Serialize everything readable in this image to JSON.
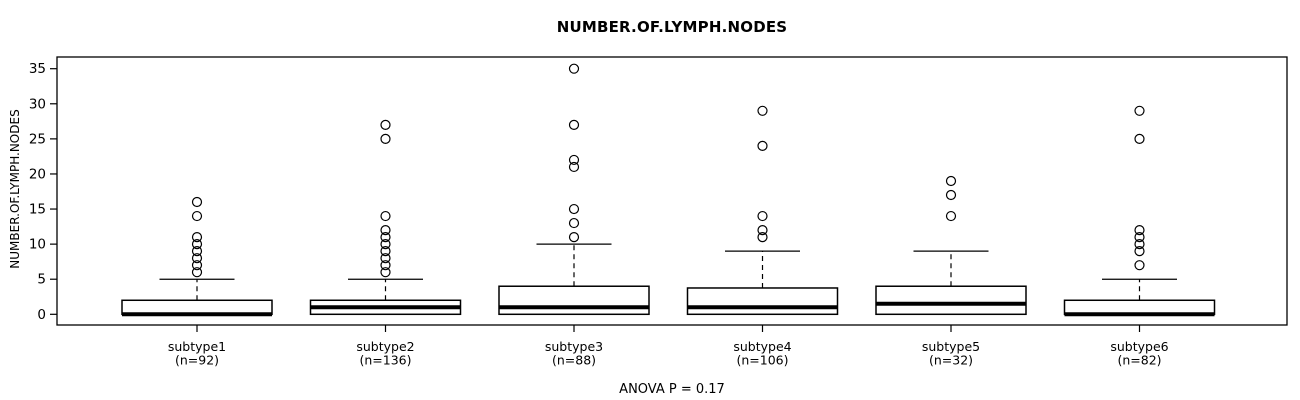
{
  "header": {
    "title": "NUMBER.OF.LYMPH.NODES"
  },
  "footer": {
    "annotation": "ANOVA P = 0.17"
  },
  "chart_data": {
    "type": "boxplot",
    "title": "NUMBER.OF.LYMPH.NODES",
    "xlabel": "",
    "ylabel": "NUMBER.OF.LYMPH.NODES",
    "ylim": [
      0,
      35
    ],
    "yticks": [
      0,
      5,
      10,
      15,
      20,
      25,
      30,
      35
    ],
    "annotation": "ANOVA P = 0.17",
    "legend": "none",
    "grid": false,
    "colors": {
      "stroke": "#000000",
      "box_fill": "#ffffff",
      "background": "#ffffff"
    },
    "groups": [
      {
        "label": "subtype1",
        "sublabel": "(n=92)",
        "n": 92,
        "whisker_low": 0,
        "q1": 0,
        "median": 0,
        "q3": 2,
        "whisker_high": 5,
        "outliers": [
          6,
          7,
          8,
          9,
          10,
          11,
          14,
          16
        ]
      },
      {
        "label": "subtype2",
        "sublabel": "(n=136)",
        "n": 136,
        "whisker_low": 0,
        "q1": 0,
        "median": 1,
        "q3": 2,
        "whisker_high": 5,
        "outliers": [
          6,
          7,
          8,
          9,
          10,
          11,
          12,
          14,
          25,
          27
        ]
      },
      {
        "label": "subtype3",
        "sublabel": "(n=88)",
        "n": 88,
        "whisker_low": 0,
        "q1": 0,
        "median": 1,
        "q3": 4,
        "whisker_high": 10,
        "outliers": [
          11,
          13,
          15,
          21,
          22,
          27,
          35
        ]
      },
      {
        "label": "subtype4",
        "sublabel": "(n=106)",
        "n": 106,
        "whisker_low": 0,
        "q1": 0,
        "median": 1,
        "q3": 3.75,
        "whisker_high": 9,
        "outliers": [
          11,
          12,
          14,
          24,
          29
        ]
      },
      {
        "label": "subtype5",
        "sublabel": "(n=32)",
        "n": 32,
        "whisker_low": 0,
        "q1": 0,
        "median": 1.5,
        "q3": 4,
        "whisker_high": 9,
        "outliers": [
          14,
          17,
          19
        ]
      },
      {
        "label": "subtype6",
        "sublabel": "(n=82)",
        "n": 82,
        "whisker_low": 0,
        "q1": 0,
        "median": 0,
        "q3": 2,
        "whisker_high": 5,
        "outliers": [
          7,
          9,
          10,
          11,
          12,
          25,
          29
        ]
      }
    ]
  }
}
